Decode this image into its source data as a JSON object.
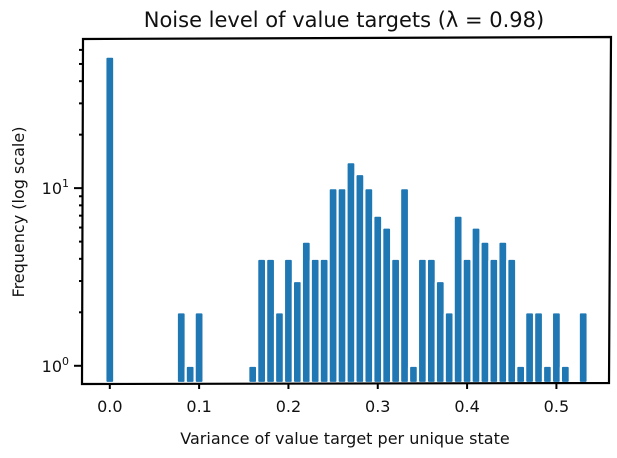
{
  "chart_data": {
    "type": "bar",
    "title": "Noise level of value targets (λ = 0.98)",
    "xlabel": "Variance of value target per unique state",
    "ylabel": "Frequency (log scale)",
    "y_scale": "log",
    "xlim": [
      -0.03,
      0.56
    ],
    "ylim": [
      0.8,
      70
    ],
    "bin_width": 0.01,
    "x_ticks": [
      {
        "value": 0.0,
        "label": "0.0"
      },
      {
        "value": 0.1,
        "label": "0.1"
      },
      {
        "value": 0.2,
        "label": "0.2"
      },
      {
        "value": 0.3,
        "label": "0.3"
      },
      {
        "value": 0.4,
        "label": "0.4"
      },
      {
        "value": 0.5,
        "label": "0.5"
      }
    ],
    "y_ticks": [
      {
        "value": 1,
        "base": "10",
        "exp": "0"
      },
      {
        "value": 10,
        "base": "10",
        "exp": "1"
      }
    ],
    "colors": {
      "bar": "#1f77b4",
      "bar_edge": "#ffffff",
      "frame": "#000000"
    },
    "bins": [
      {
        "x": 0.0,
        "count": 55
      },
      {
        "x": 0.08,
        "count": 2
      },
      {
        "x": 0.09,
        "count": 1
      },
      {
        "x": 0.1,
        "count": 2
      },
      {
        "x": 0.16,
        "count": 1
      },
      {
        "x": 0.17,
        "count": 4
      },
      {
        "x": 0.18,
        "count": 4
      },
      {
        "x": 0.19,
        "count": 2
      },
      {
        "x": 0.2,
        "count": 4
      },
      {
        "x": 0.21,
        "count": 3
      },
      {
        "x": 0.22,
        "count": 5
      },
      {
        "x": 0.23,
        "count": 4
      },
      {
        "x": 0.24,
        "count": 4
      },
      {
        "x": 0.25,
        "count": 10
      },
      {
        "x": 0.26,
        "count": 10
      },
      {
        "x": 0.27,
        "count": 14
      },
      {
        "x": 0.28,
        "count": 12
      },
      {
        "x": 0.29,
        "count": 10
      },
      {
        "x": 0.3,
        "count": 7
      },
      {
        "x": 0.31,
        "count": 6
      },
      {
        "x": 0.32,
        "count": 4
      },
      {
        "x": 0.33,
        "count": 10
      },
      {
        "x": 0.34,
        "count": 1
      },
      {
        "x": 0.35,
        "count": 4
      },
      {
        "x": 0.36,
        "count": 4
      },
      {
        "x": 0.37,
        "count": 3
      },
      {
        "x": 0.38,
        "count": 2
      },
      {
        "x": 0.39,
        "count": 7
      },
      {
        "x": 0.4,
        "count": 4
      },
      {
        "x": 0.41,
        "count": 6
      },
      {
        "x": 0.42,
        "count": 5
      },
      {
        "x": 0.43,
        "count": 4
      },
      {
        "x": 0.44,
        "count": 5
      },
      {
        "x": 0.45,
        "count": 4
      },
      {
        "x": 0.46,
        "count": 1
      },
      {
        "x": 0.47,
        "count": 2
      },
      {
        "x": 0.48,
        "count": 2
      },
      {
        "x": 0.49,
        "count": 1
      },
      {
        "x": 0.5,
        "count": 2
      },
      {
        "x": 0.51,
        "count": 1
      },
      {
        "x": 0.53,
        "count": 2
      }
    ]
  }
}
